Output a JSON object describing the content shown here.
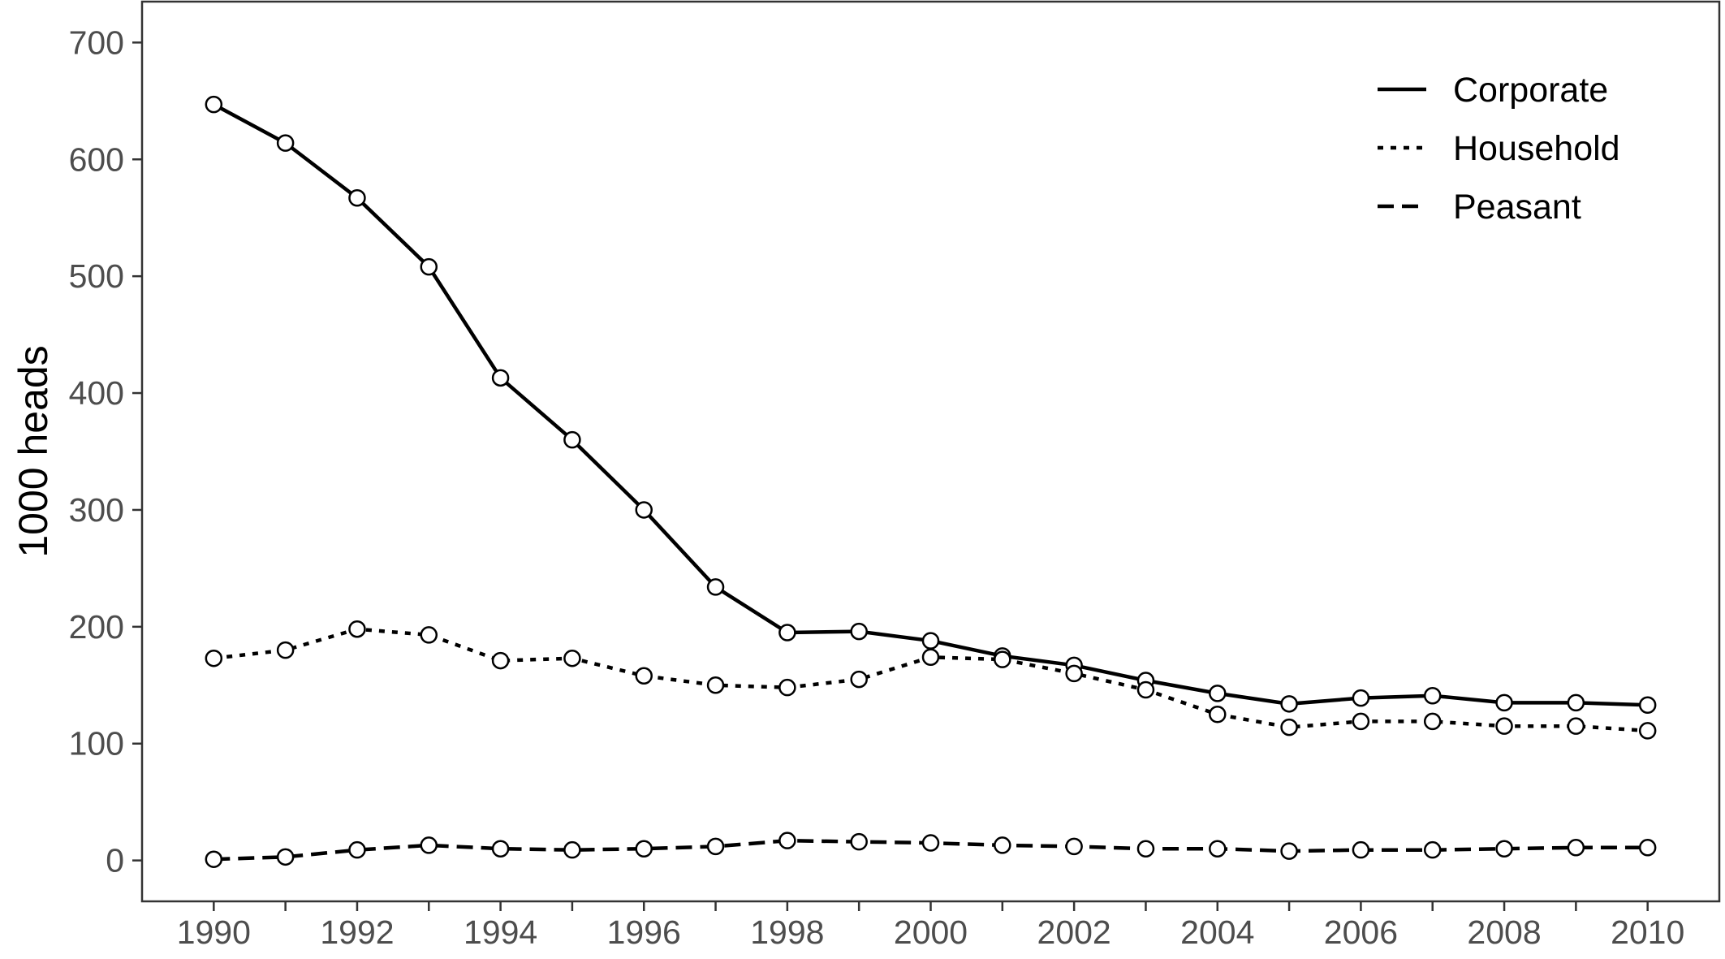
{
  "chart_data": {
    "type": "line",
    "title": "",
    "xlabel": "",
    "ylabel": "1000 heads",
    "x": [
      1990,
      1991,
      1992,
      1993,
      1994,
      1995,
      1996,
      1997,
      1998,
      1999,
      2000,
      2001,
      2002,
      2003,
      2004,
      2005,
      2006,
      2007,
      2008,
      2009,
      2010
    ],
    "x_ticks": [
      1990,
      1992,
      1994,
      1996,
      1998,
      2000,
      2002,
      2004,
      2006,
      2008,
      2010
    ],
    "y_ticks": [
      0,
      100,
      200,
      300,
      400,
      500,
      600,
      700
    ],
    "xlim": [
      1989,
      2011
    ],
    "ylim": [
      -35,
      735
    ],
    "grid": false,
    "legend_position": "top-right",
    "series": [
      {
        "name": "Corporate",
        "line_style": "solid",
        "values": [
          647,
          614,
          567,
          508,
          413,
          360,
          300,
          234,
          195,
          196,
          188,
          175,
          167,
          154,
          143,
          134,
          139,
          141,
          135,
          135,
          133
        ]
      },
      {
        "name": "Household",
        "line_style": "dotted",
        "values": [
          173,
          180,
          198,
          193,
          171,
          173,
          158,
          150,
          148,
          155,
          174,
          172,
          160,
          146,
          125,
          114,
          119,
          119,
          115,
          115,
          111
        ]
      },
      {
        "name": "Peasant",
        "line_style": "dashed",
        "values": [
          1,
          3,
          9,
          13,
          10,
          9,
          10,
          12,
          17,
          16,
          15,
          13,
          12,
          10,
          10,
          8,
          9,
          9,
          10,
          11,
          11
        ]
      }
    ]
  }
}
